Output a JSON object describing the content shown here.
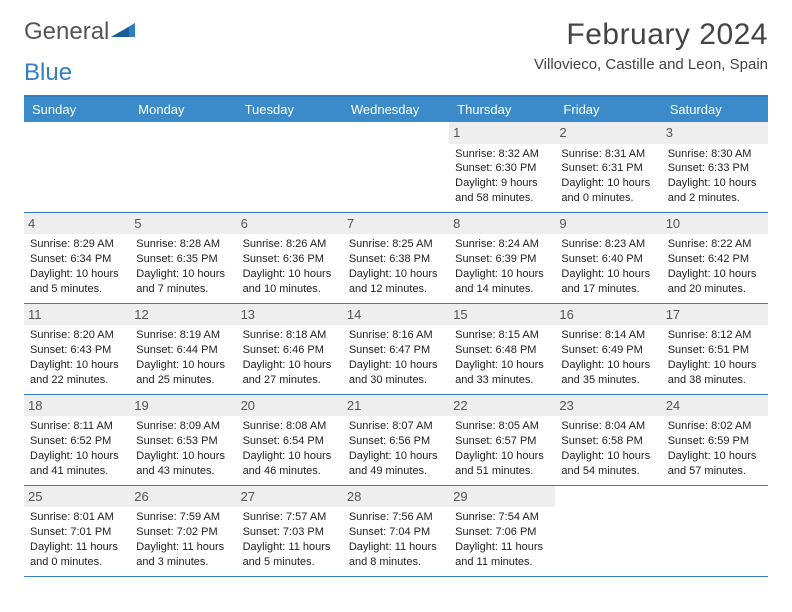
{
  "brand": {
    "part1": "General",
    "part2": "Blue"
  },
  "title": "February 2024",
  "location": "Villovieco, Castille and Leon, Spain",
  "colors": {
    "header_bg": "#3b8ac9",
    "accent_border": "#2f7fc2",
    "daynum_bg": "#eeeeee",
    "text": "#222222",
    "muted": "#555555"
  },
  "weekdays": [
    "Sunday",
    "Monday",
    "Tuesday",
    "Wednesday",
    "Thursday",
    "Friday",
    "Saturday"
  ],
  "first_weekday_index": 4,
  "days": [
    {
      "n": 1,
      "sunrise": "8:32 AM",
      "sunset": "6:30 PM",
      "daylight": "9 hours and 58 minutes."
    },
    {
      "n": 2,
      "sunrise": "8:31 AM",
      "sunset": "6:31 PM",
      "daylight": "10 hours and 0 minutes."
    },
    {
      "n": 3,
      "sunrise": "8:30 AM",
      "sunset": "6:33 PM",
      "daylight": "10 hours and 2 minutes."
    },
    {
      "n": 4,
      "sunrise": "8:29 AM",
      "sunset": "6:34 PM",
      "daylight": "10 hours and 5 minutes."
    },
    {
      "n": 5,
      "sunrise": "8:28 AM",
      "sunset": "6:35 PM",
      "daylight": "10 hours and 7 minutes."
    },
    {
      "n": 6,
      "sunrise": "8:26 AM",
      "sunset": "6:36 PM",
      "daylight": "10 hours and 10 minutes."
    },
    {
      "n": 7,
      "sunrise": "8:25 AM",
      "sunset": "6:38 PM",
      "daylight": "10 hours and 12 minutes."
    },
    {
      "n": 8,
      "sunrise": "8:24 AM",
      "sunset": "6:39 PM",
      "daylight": "10 hours and 14 minutes."
    },
    {
      "n": 9,
      "sunrise": "8:23 AM",
      "sunset": "6:40 PM",
      "daylight": "10 hours and 17 minutes."
    },
    {
      "n": 10,
      "sunrise": "8:22 AM",
      "sunset": "6:42 PM",
      "daylight": "10 hours and 20 minutes."
    },
    {
      "n": 11,
      "sunrise": "8:20 AM",
      "sunset": "6:43 PM",
      "daylight": "10 hours and 22 minutes."
    },
    {
      "n": 12,
      "sunrise": "8:19 AM",
      "sunset": "6:44 PM",
      "daylight": "10 hours and 25 minutes."
    },
    {
      "n": 13,
      "sunrise": "8:18 AM",
      "sunset": "6:46 PM",
      "daylight": "10 hours and 27 minutes."
    },
    {
      "n": 14,
      "sunrise": "8:16 AM",
      "sunset": "6:47 PM",
      "daylight": "10 hours and 30 minutes."
    },
    {
      "n": 15,
      "sunrise": "8:15 AM",
      "sunset": "6:48 PM",
      "daylight": "10 hours and 33 minutes."
    },
    {
      "n": 16,
      "sunrise": "8:14 AM",
      "sunset": "6:49 PM",
      "daylight": "10 hours and 35 minutes."
    },
    {
      "n": 17,
      "sunrise": "8:12 AM",
      "sunset": "6:51 PM",
      "daylight": "10 hours and 38 minutes."
    },
    {
      "n": 18,
      "sunrise": "8:11 AM",
      "sunset": "6:52 PM",
      "daylight": "10 hours and 41 minutes."
    },
    {
      "n": 19,
      "sunrise": "8:09 AM",
      "sunset": "6:53 PM",
      "daylight": "10 hours and 43 minutes."
    },
    {
      "n": 20,
      "sunrise": "8:08 AM",
      "sunset": "6:54 PM",
      "daylight": "10 hours and 46 minutes."
    },
    {
      "n": 21,
      "sunrise": "8:07 AM",
      "sunset": "6:56 PM",
      "daylight": "10 hours and 49 minutes."
    },
    {
      "n": 22,
      "sunrise": "8:05 AM",
      "sunset": "6:57 PM",
      "daylight": "10 hours and 51 minutes."
    },
    {
      "n": 23,
      "sunrise": "8:04 AM",
      "sunset": "6:58 PM",
      "daylight": "10 hours and 54 minutes."
    },
    {
      "n": 24,
      "sunrise": "8:02 AM",
      "sunset": "6:59 PM",
      "daylight": "10 hours and 57 minutes."
    },
    {
      "n": 25,
      "sunrise": "8:01 AM",
      "sunset": "7:01 PM",
      "daylight": "11 hours and 0 minutes."
    },
    {
      "n": 26,
      "sunrise": "7:59 AM",
      "sunset": "7:02 PM",
      "daylight": "11 hours and 3 minutes."
    },
    {
      "n": 27,
      "sunrise": "7:57 AM",
      "sunset": "7:03 PM",
      "daylight": "11 hours and 5 minutes."
    },
    {
      "n": 28,
      "sunrise": "7:56 AM",
      "sunset": "7:04 PM",
      "daylight": "11 hours and 8 minutes."
    },
    {
      "n": 29,
      "sunrise": "7:54 AM",
      "sunset": "7:06 PM",
      "daylight": "11 hours and 11 minutes."
    }
  ],
  "labels": {
    "sunrise": "Sunrise:",
    "sunset": "Sunset:",
    "daylight": "Daylight:"
  }
}
